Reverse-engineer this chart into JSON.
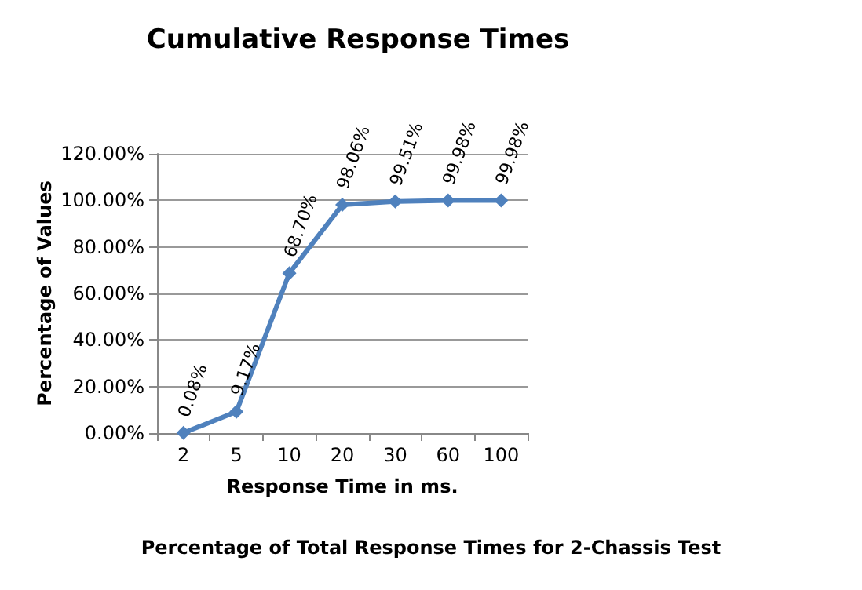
{
  "chart_data": {
    "type": "line",
    "title": "Cumulative Response Times",
    "xlabel": "Response Time in ms.",
    "ylabel": "Percentage of Values",
    "categories": [
      "2",
      "5",
      "10",
      "20",
      "30",
      "60",
      "100"
    ],
    "series": [
      {
        "color": "#4f81bd",
        "values": [
          0.08,
          9.17,
          68.7,
          98.06,
          99.51,
          99.98,
          99.98
        ],
        "value_labels": [
          "0.08%",
          "9.17%",
          "68.70%",
          "98.06%",
          "99.51%",
          "99.98%",
          "99.98%"
        ]
      }
    ],
    "ylim": [
      0,
      120
    ],
    "yticks": [
      {
        "value": 0,
        "label": "0.00%"
      },
      {
        "value": 20,
        "label": "20.00%"
      },
      {
        "value": 40,
        "label": "40.00%"
      },
      {
        "value": 60,
        "label": "60.00%"
      },
      {
        "value": 80,
        "label": "80.00%"
      },
      {
        "value": 100,
        "label": "100.00%"
      },
      {
        "value": 120,
        "label": "120.00%"
      }
    ],
    "grid": "y",
    "marker": "diamond",
    "line_style": "solid",
    "annotations": [
      "Percentage of Total Response Times for 2-Chassis Test"
    ]
  }
}
